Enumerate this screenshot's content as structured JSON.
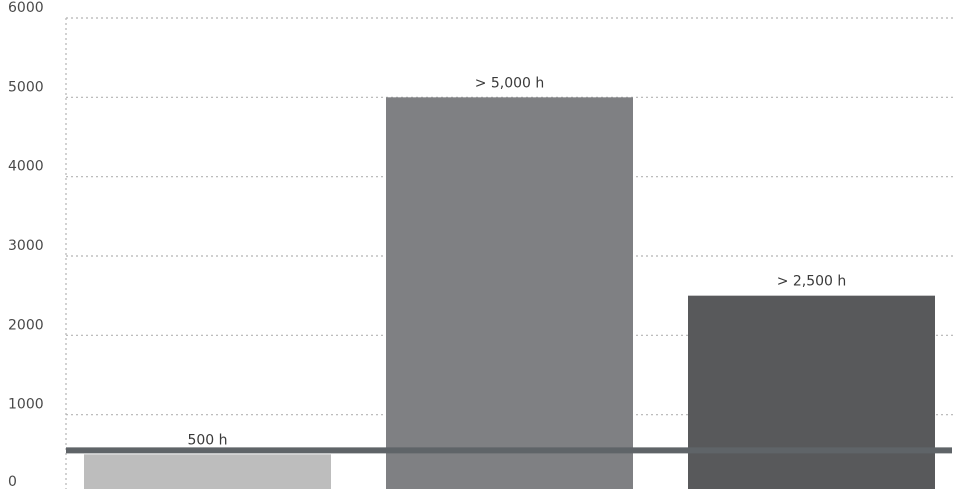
{
  "chart_data": {
    "type": "bar",
    "categories": [
      "",
      "",
      ""
    ],
    "values": [
      500,
      5000,
      2500
    ],
    "data_labels": [
      "500 h",
      "> 5,000 h",
      "> 2,500 h"
    ],
    "bar_colors": [
      "#bdbdbd",
      "#7f8083",
      "#58595b"
    ],
    "yticks": [
      0,
      1000,
      2000,
      3000,
      4000,
      5000,
      6000
    ],
    "ytick_labels": [
      "0",
      "1000",
      "2000",
      "3000",
      "4000",
      "5000",
      "6000"
    ],
    "ylim": [
      0,
      6000
    ],
    "grid": true,
    "reference_line": {
      "value": 550,
      "color": "#5f6468"
    },
    "title": "",
    "xlabel": "",
    "ylabel": ""
  }
}
